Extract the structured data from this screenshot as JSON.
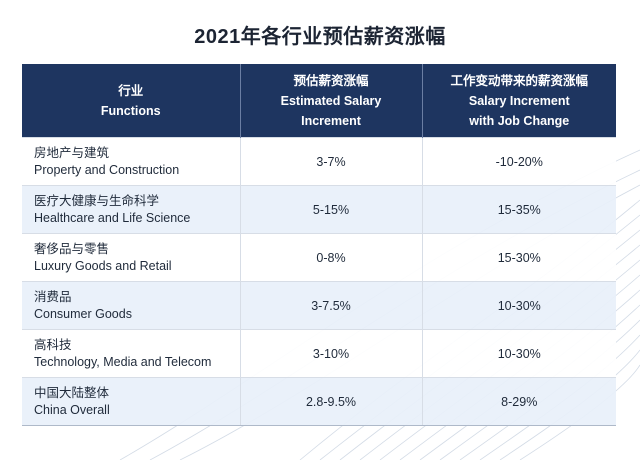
{
  "title": "2021年各行业预估薪资涨幅",
  "header": {
    "col1": [
      "行业",
      "Functions"
    ],
    "col2": [
      "预估薪资涨幅",
      "Estimated Salary",
      "Increment"
    ],
    "col3": [
      "工作变动带来的薪资涨幅",
      "Salary Increment",
      "with Job Change"
    ]
  },
  "rows": [
    {
      "cn": "房地产与建筑",
      "en": "Property and Construction",
      "estimated": "3-7%",
      "job_change": "-10-20%"
    },
    {
      "cn": "医疗大健康与生命科学",
      "en": "Healthcare and Life Science",
      "estimated": "5-15%",
      "job_change": "15-35%"
    },
    {
      "cn": "奢侈品与零售",
      "en": "Luxury Goods and Retail",
      "estimated": "0-8%",
      "job_change": "15-30%"
    },
    {
      "cn": "消费品",
      "en": "Consumer Goods",
      "estimated": "3-7.5%",
      "job_change": "10-30%"
    },
    {
      "cn": "高科技",
      "en": "Technology, Media and Telecom",
      "estimated": "3-10%",
      "job_change": "10-30%"
    },
    {
      "cn": "中国大陆整体",
      "en": "China Overall",
      "estimated": "2.8-9.5%",
      "job_change": "8-29%"
    }
  ],
  "colors": {
    "header_bg": "#1e3560",
    "row_alt_bg": "#e8f0fa",
    "wave_lines": "#c9d3e0"
  }
}
